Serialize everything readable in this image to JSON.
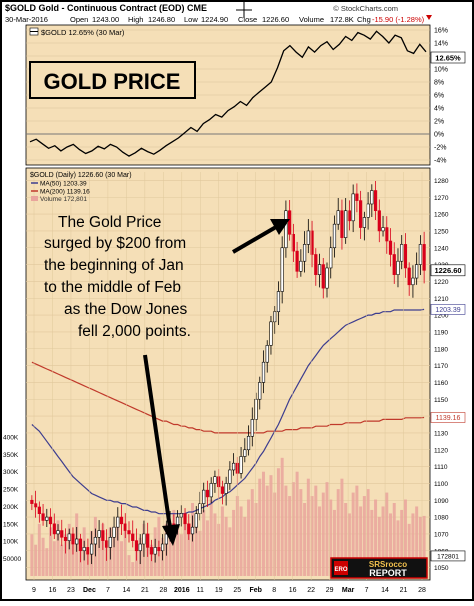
{
  "header": {
    "symbol_line": "$GOLD Gold - Continuous Contract (EOD) CME",
    "copyright": "© StockCharts.com",
    "date": "30-Mar-2016",
    "open_label": "Open",
    "open": "1243.00",
    "high_label": "High",
    "high": "1246.80",
    "low_label": "Low",
    "low": "1224.90",
    "close_label": "Close",
    "close": "1226.60",
    "volume_label": "Volume",
    "volume": "172.8K",
    "chg_label": "Chg",
    "chg": "-15.90 (-1.28%)"
  },
  "overlay": {
    "title": "GOLD PRICE",
    "annotation": [
      "The Gold Price",
      "surged by $200 from",
      "the beginning of Jan",
      "to the middle of Feb",
      "as the Dow Jones",
      "fell 2,000 points."
    ]
  },
  "logo": {
    "text_top": "SRSrocco",
    "text_bottom": "REPORT",
    "badge": "ERO"
  },
  "chart_data": [
    {
      "type": "line",
      "legend": "$GOLD 12.65% (30 Mar)",
      "ylabel": "",
      "ylim": [
        -4,
        16
      ],
      "yticks": [
        16,
        14,
        12,
        10,
        8,
        6,
        4,
        2,
        0,
        -2,
        -4
      ],
      "ytick_labels": [
        "16%",
        "14%",
        "12%",
        "10%",
        "8%",
        "6%",
        "4%",
        "2%",
        "0%",
        "-2%",
        "-4%"
      ],
      "last_value_label": "12.65%",
      "values": [
        -1.2,
        -0.8,
        -1.5,
        -2.2,
        -1.8,
        -2.6,
        -2.0,
        -1.6,
        -2.4,
        -3.0,
        -2.6,
        -1.9,
        -2.3,
        -1.6,
        -2.0,
        -2.8,
        -3.4,
        -2.9,
        -2.2,
        -2.7,
        -3.1,
        -2.5,
        -1.8,
        -1.2,
        -0.6,
        0.2,
        1.0,
        0.4,
        1.6,
        2.2,
        3.0,
        2.6,
        3.6,
        4.2,
        5.0,
        4.4,
        5.6,
        6.4,
        7.2,
        8.0,
        10.2,
        12.8,
        13.6,
        12.6,
        11.8,
        13.4,
        12.6,
        13.6,
        14.2,
        13.0,
        13.8,
        15.0,
        14.4,
        15.6,
        15.2,
        14.6,
        15.8,
        15.0,
        14.0,
        15.2,
        14.8,
        12.8,
        12.4,
        13.8,
        12.65
      ]
    },
    {
      "type": "candlestick",
      "legend": [
        "$GOLD (Daily) 1226.60 (30 Mar)",
        "MA(50) 1203.39",
        "MA(200) 1139.16",
        "Volume 172,801"
      ],
      "ylim": [
        1045,
        1285
      ],
      "yticks": [
        1050,
        1060,
        1070,
        1080,
        1090,
        1100,
        1110,
        1120,
        1130,
        1140,
        1150,
        1160,
        1170,
        1180,
        1190,
        1200,
        1210,
        1220,
        1230,
        1240,
        1250,
        1260,
        1270,
        1280
      ],
      "price_labels": {
        "close": "1226.60",
        "ma50": "1203.39",
        "ma200": "1139.16",
        "volume": "172801"
      },
      "volume_ticks": [
        "400K",
        "350K",
        "300K",
        "250K",
        "200K",
        "150K",
        "100K",
        "50000"
      ],
      "volume_ylim": [
        0,
        420000
      ],
      "x_tick_labels": [
        "9",
        "16",
        "23",
        "Dec",
        "7",
        "14",
        "21",
        "28",
        "2016",
        "11",
        "19",
        "25",
        "Feb",
        "8",
        "16",
        "22",
        "29",
        "Mar",
        "7",
        "14",
        "21",
        "28"
      ],
      "closes": [
        1088,
        1086,
        1082,
        1078,
        1080,
        1076,
        1070,
        1072,
        1068,
        1066,
        1070,
        1064,
        1067,
        1060,
        1062,
        1058,
        1064,
        1068,
        1072,
        1066,
        1062,
        1068,
        1074,
        1080,
        1076,
        1072,
        1070,
        1066,
        1060,
        1064,
        1070,
        1062,
        1058,
        1062,
        1060,
        1064,
        1070,
        1076,
        1074,
        1080,
        1082,
        1076,
        1070,
        1074,
        1082,
        1088,
        1096,
        1092,
        1100,
        1104,
        1098,
        1094,
        1100,
        1108,
        1112,
        1106,
        1116,
        1120,
        1128,
        1138,
        1150,
        1160,
        1172,
        1182,
        1196,
        1202,
        1214,
        1240,
        1262,
        1248,
        1238,
        1226,
        1232,
        1242,
        1250,
        1236,
        1224,
        1230,
        1216,
        1228,
        1240,
        1254,
        1262,
        1246,
        1262,
        1256,
        1272,
        1268,
        1252,
        1258,
        1266,
        1274,
        1262,
        1250,
        1252,
        1244,
        1236,
        1224,
        1232,
        1242,
        1228,
        1218,
        1222,
        1230,
        1242,
        1226.6
      ],
      "ma50": [
        1135,
        1133,
        1131,
        1128,
        1125,
        1122,
        1119,
        1116,
        1113,
        1110,
        1107,
        1104,
        1102,
        1100,
        1098,
        1096,
        1094,
        1093,
        1092,
        1091,
        1090,
        1090,
        1089,
        1089,
        1088,
        1088,
        1087,
        1086,
        1086,
        1085,
        1084,
        1084,
        1083,
        1083,
        1082,
        1082,
        1082,
        1082,
        1082,
        1082,
        1082,
        1082,
        1083,
        1083,
        1084,
        1085,
        1086,
        1087,
        1088,
        1090,
        1091,
        1092,
        1094,
        1095,
        1097,
        1099,
        1101,
        1103,
        1106,
        1109,
        1112,
        1116,
        1119,
        1123,
        1127,
        1131,
        1135,
        1140,
        1145,
        1150,
        1154,
        1158,
        1162,
        1166,
        1170,
        1173,
        1176,
        1179,
        1182,
        1184,
        1186,
        1188,
        1190,
        1192,
        1194,
        1195,
        1196,
        1197,
        1198,
        1199,
        1200,
        1200,
        1201,
        1201,
        1202,
        1202,
        1202,
        1203,
        1203,
        1203,
        1203,
        1203,
        1203,
        1203,
        1203,
        1203.39
      ],
      "ma200": [
        1172,
        1171,
        1170,
        1169,
        1168,
        1167,
        1166,
        1165,
        1164,
        1163,
        1162,
        1161,
        1160,
        1159,
        1158,
        1157,
        1156,
        1155,
        1154,
        1153,
        1152,
        1151,
        1150,
        1149,
        1148,
        1147,
        1146,
        1145,
        1144,
        1143,
        1142,
        1141,
        1140,
        1139,
        1138,
        1137,
        1137,
        1136,
        1135,
        1135,
        1134,
        1134,
        1133,
        1133,
        1132,
        1132,
        1131,
        1131,
        1131,
        1130,
        1130,
        1130,
        1130,
        1130,
        1130,
        1130,
        1130,
        1130,
        1130,
        1130,
        1130,
        1130,
        1130,
        1131,
        1131,
        1131,
        1131,
        1131,
        1132,
        1132,
        1132,
        1132,
        1133,
        1133,
        1133,
        1133,
        1134,
        1134,
        1134,
        1134,
        1135,
        1135,
        1135,
        1135,
        1136,
        1136,
        1136,
        1136,
        1136,
        1137,
        1137,
        1137,
        1137,
        1137,
        1138,
        1138,
        1138,
        1138,
        1138,
        1138,
        1139,
        1139,
        1139,
        1139,
        1139,
        1139.16
      ],
      "volumes": [
        120000,
        90000,
        150000,
        110000,
        80000,
        140000,
        100000,
        160000,
        90000,
        120000,
        150000,
        110000,
        180000,
        100000,
        140000,
        80000,
        130000,
        170000,
        110000,
        150000,
        90000,
        140000,
        120000,
        160000,
        100000,
        130000,
        60000,
        40000,
        80000,
        110000,
        150000,
        120000,
        90000,
        140000,
        170000,
        110000,
        150000,
        130000,
        190000,
        140000,
        120000,
        180000,
        150000,
        210000,
        170000,
        130000,
        190000,
        160000,
        220000,
        180000,
        150000,
        200000,
        170000,
        140000,
        190000,
        230000,
        200000,
        170000,
        220000,
        250000,
        210000,
        280000,
        300000,
        260000,
        290000,
        240000,
        310000,
        340000,
        260000,
        230000,
        270000,
        300000,
        250000,
        210000,
        280000,
        230000,
        260000,
        200000,
        240000,
        270000,
        220000,
        190000,
        250000,
        280000,
        210000,
        180000,
        240000,
        260000,
        200000,
        230000,
        250000,
        190000,
        220000,
        170000,
        200000,
        240000,
        180000,
        210000,
        160000,
        190000,
        220000,
        150000,
        180000,
        200000,
        170000,
        172801
      ]
    }
  ],
  "colors": {
    "background": "#f5dfb7",
    "frame": "#000000",
    "up_candle": "#ffffff",
    "down_candle": "#d9001b",
    "ma50": "#3d3d8f",
    "ma200": "#c0392b",
    "volume": "#e9a49c",
    "arrow": "#000000"
  }
}
